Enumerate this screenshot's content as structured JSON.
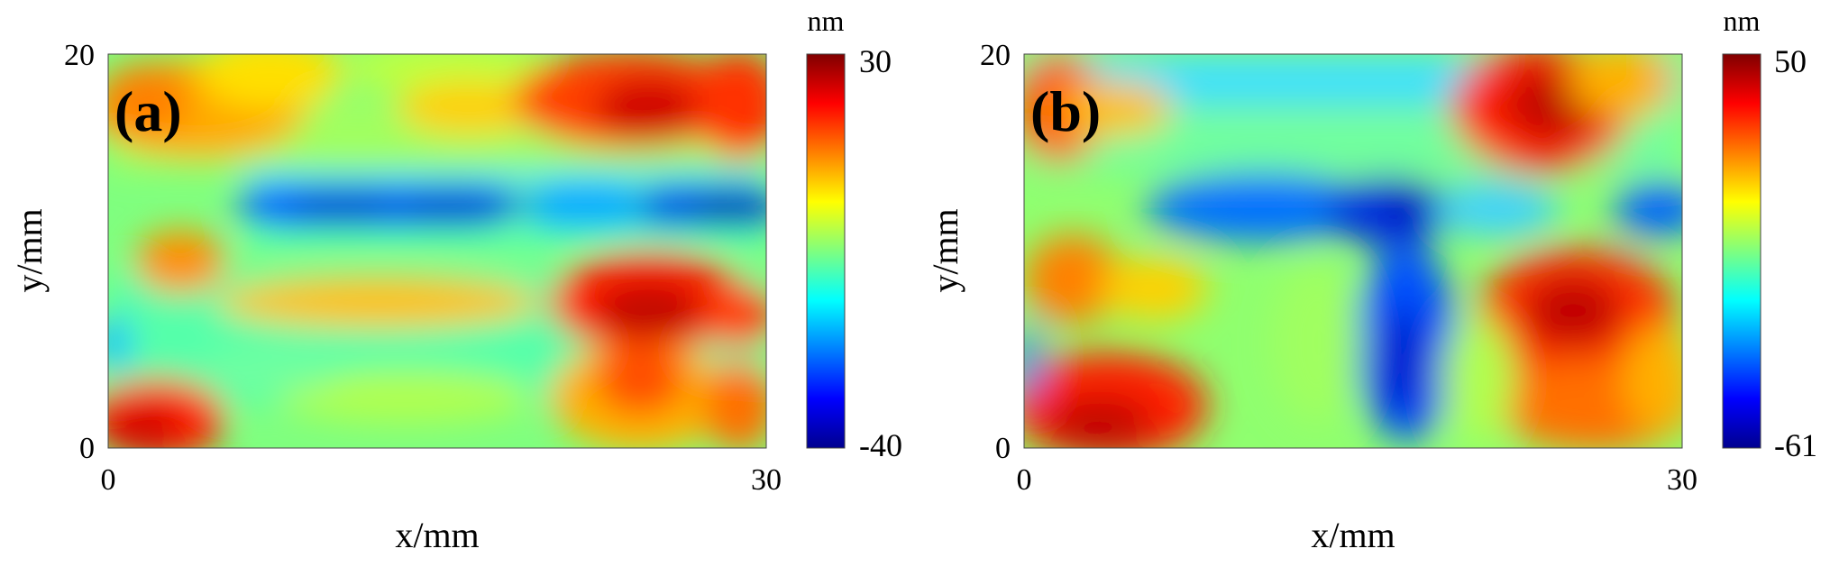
{
  "chart_data": [
    {
      "type": "heatmap",
      "panel_label": "(a)",
      "xlabel": "x/mm",
      "ylabel": "y/mm",
      "xlim": [
        0,
        30
      ],
      "ylim": [
        0,
        20
      ],
      "x_ticks": [
        "0",
        "30"
      ],
      "y_ticks": [
        "0",
        "20"
      ],
      "colorbar": {
        "unit": "nm",
        "max": 30,
        "min": -40,
        "max_label": "30",
        "min_label": "-40"
      },
      "colormap": "jet",
      "grid": false
    },
    {
      "type": "heatmap",
      "panel_label": "(b)",
      "xlabel": "x/mm",
      "ylabel": "y/mm",
      "xlim": [
        0,
        30
      ],
      "ylim": [
        0,
        20
      ],
      "x_ticks": [
        "0",
        "30"
      ],
      "y_ticks": [
        "0",
        "20"
      ],
      "colorbar": {
        "unit": "nm",
        "max": 50,
        "min": -61,
        "max_label": "50",
        "min_label": "-61"
      },
      "colormap": "jet",
      "grid": false
    }
  ]
}
